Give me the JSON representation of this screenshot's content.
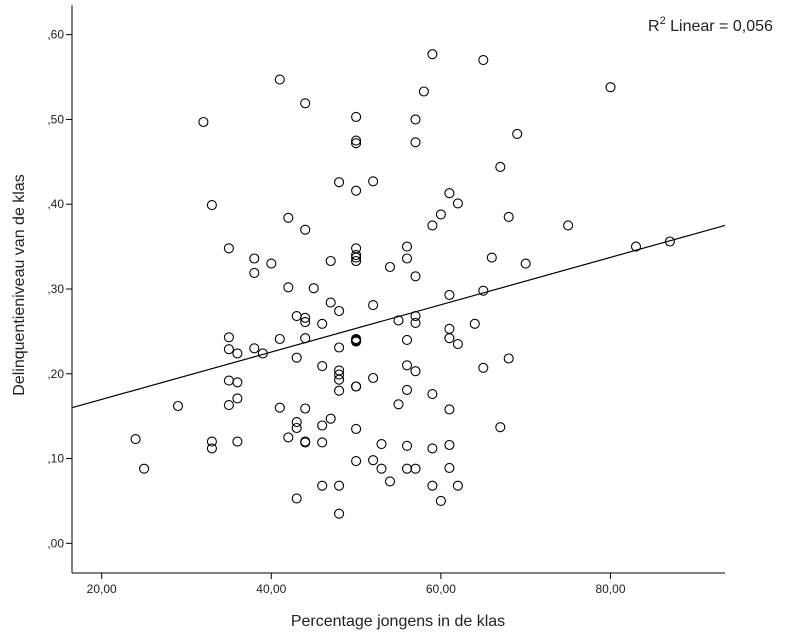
{
  "chart_data": {
    "type": "scatter",
    "title": "",
    "xlabel": "Percentage jongens in de klas",
    "ylabel": "Delinquentieniveau van de klas",
    "xlim": [
      16.5,
      93.5
    ],
    "ylim": [
      -0.035,
      0.635
    ],
    "x_ticks": [
      20,
      40,
      60,
      80
    ],
    "x_tick_labels": [
      "20,00",
      "40,00",
      "60,00",
      "80,00"
    ],
    "y_ticks": [
      0.0,
      0.1,
      0.2,
      0.3,
      0.4,
      0.5,
      0.6
    ],
    "y_tick_labels": [
      ",00",
      ",10",
      ",20",
      ",30",
      ",40",
      ",50",
      ",60"
    ],
    "annotation": {
      "prefix": "R",
      "superscript": "2",
      "suffix": " Linear = 0,056"
    },
    "fit_line": {
      "x": [
        16.5,
        93.5
      ],
      "y": [
        0.16,
        0.375
      ]
    },
    "marker_color": "#000000",
    "line_color": "#000000",
    "points": {
      "x": [
        24,
        25,
        29,
        32,
        33,
        33,
        33,
        35,
        35,
        35,
        35,
        35,
        36,
        36,
        36,
        36,
        38,
        38,
        38,
        39,
        40,
        41,
        41,
        41,
        42,
        42,
        42,
        43,
        43,
        43,
        43,
        43,
        44,
        44,
        44,
        44,
        44,
        44,
        44,
        44,
        45,
        46,
        46,
        46,
        46,
        46,
        47,
        47,
        47,
        48,
        48,
        48,
        48,
        48,
        48,
        48,
        48,
        48,
        50,
        50,
        50,
        50,
        50,
        50,
        50,
        50,
        50,
        50,
        50,
        50,
        50,
        50,
        50,
        50,
        52,
        52,
        52,
        52,
        53,
        53,
        54,
        54,
        55,
        55,
        56,
        56,
        56,
        56,
        56,
        56,
        56,
        57,
        57,
        57,
        57,
        57,
        57,
        57,
        58,
        59,
        59,
        59,
        59,
        59,
        60,
        60,
        61,
        61,
        61,
        61,
        61,
        61,
        61,
        62,
        62,
        62,
        64,
        65,
        65,
        65,
        66,
        67,
        67,
        68,
        68,
        69,
        70,
        75,
        80,
        83,
        87
      ],
      "y": [
        0.123,
        0.088,
        0.162,
        0.497,
        0.399,
        0.12,
        0.112,
        0.348,
        0.243,
        0.229,
        0.192,
        0.163,
        0.19,
        0.171,
        0.12,
        0.224,
        0.336,
        0.319,
        0.23,
        0.224,
        0.33,
        0.547,
        0.241,
        0.16,
        0.384,
        0.302,
        0.125,
        0.268,
        0.219,
        0.143,
        0.136,
        0.053,
        0.519,
        0.37,
        0.266,
        0.261,
        0.242,
        0.159,
        0.119,
        0.12,
        0.301,
        0.259,
        0.209,
        0.139,
        0.119,
        0.068,
        0.333,
        0.284,
        0.147,
        0.426,
        0.274,
        0.231,
        0.204,
        0.193,
        0.18,
        0.068,
        0.035,
        0.199,
        0.503,
        0.475,
        0.472,
        0.416,
        0.348,
        0.337,
        0.333,
        0.24,
        0.239,
        0.185,
        0.135,
        0.097,
        0.241,
        0.238,
        0.34,
        0.185,
        0.427,
        0.281,
        0.195,
        0.098,
        0.117,
        0.088,
        0.326,
        0.073,
        0.263,
        0.164,
        0.35,
        0.336,
        0.24,
        0.21,
        0.181,
        0.115,
        0.088,
        0.5,
        0.473,
        0.315,
        0.268,
        0.26,
        0.203,
        0.088,
        0.533,
        0.577,
        0.375,
        0.176,
        0.112,
        0.068,
        0.388,
        0.05,
        0.413,
        0.293,
        0.253,
        0.242,
        0.158,
        0.116,
        0.089,
        0.401,
        0.235,
        0.068,
        0.259,
        0.298,
        0.207,
        0.57,
        0.337,
        0.444,
        0.137,
        0.385,
        0.218,
        0.483,
        0.33,
        0.375,
        0.538,
        0.35,
        0.356
      ]
    }
  }
}
